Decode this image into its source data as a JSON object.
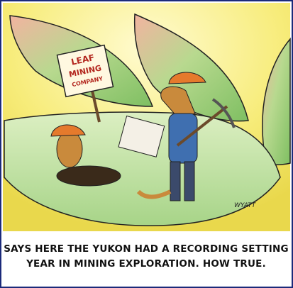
{
  "illustration": {
    "sign": [
      "LEAF",
      "MINING",
      "COMPANY"
    ],
    "signature": "WYATT"
  },
  "caption": [
    "SAYS HERE THE YUKON HAD A RECORDING SETTING",
    "YEAR IN MINING EXPLORATION. HOW TRUE."
  ]
}
